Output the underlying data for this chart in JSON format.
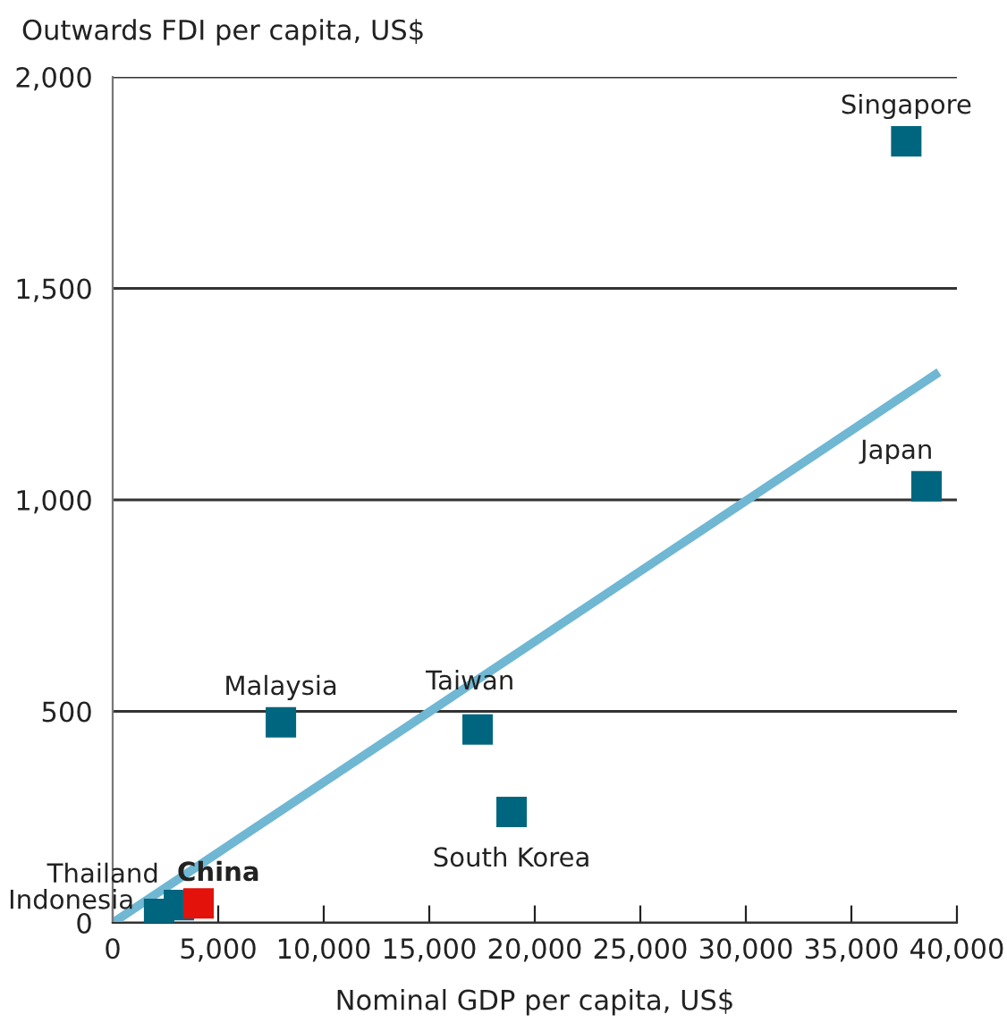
{
  "chart_data": {
    "type": "scatter",
    "xlabel": "Nominal GDP per capita, US$",
    "ylabel": "Outwards FDI per capita, US$",
    "xlim": [
      0,
      40000
    ],
    "xticks": [
      {
        "value": 0,
        "label": "0"
      },
      {
        "value": 5000,
        "label": "5,000"
      },
      {
        "value": 10000,
        "label": "10,000"
      },
      {
        "value": 15000,
        "label": "15,000"
      },
      {
        "value": 20000,
        "label": "20,000"
      },
      {
        "value": 25000,
        "label": "25,000"
      },
      {
        "value": 30000,
        "label": "30,000"
      },
      {
        "value": 35000,
        "label": "35,000"
      },
      {
        "value": 40000,
        "label": "40,000"
      }
    ],
    "ylim": [
      0,
      2000
    ],
    "yticks": [
      {
        "value": 0,
        "label": "0"
      },
      {
        "value": 500,
        "label": "500"
      },
      {
        "value": 1000,
        "label": "1,000"
      },
      {
        "value": 1500,
        "label": "1,500"
      },
      {
        "value": 2000,
        "label": "2,000"
      }
    ],
    "grid": "y",
    "legend": false,
    "marker": "square",
    "series": [
      {
        "type": "line",
        "marker": "none",
        "color": "#6fb7d3",
        "x": [
          0,
          39150
        ],
        "values": [
          0,
          1302
        ]
      },
      {
        "name": "Singapore",
        "color": "#00667f",
        "x": [
          37600
        ],
        "values": [
          1848
        ]
      },
      {
        "name": "Japan",
        "color": "#00667f",
        "x": [
          38560
        ],
        "values": [
          1032
        ]
      },
      {
        "name": "Malaysia",
        "color": "#00667f",
        "x": [
          7970
        ],
        "values": [
          474
        ]
      },
      {
        "name": "Taiwan",
        "color": "#00667f",
        "x": [
          17290
        ],
        "values": [
          457
        ]
      },
      {
        "name": "South Korea",
        "color": "#00667f",
        "x": [
          18900
        ],
        "values": [
          262
        ]
      },
      {
        "name": "Indonesia",
        "color": "#00667f",
        "x": [
          2200
        ],
        "values": [
          21
        ]
      },
      {
        "name": "Thailand",
        "color": "#00667f",
        "x": [
          3140
        ],
        "values": [
          42
        ]
      },
      {
        "name": "China",
        "color": "#e3120b",
        "x": [
          4070
        ],
        "values": [
          46
        ]
      }
    ]
  }
}
